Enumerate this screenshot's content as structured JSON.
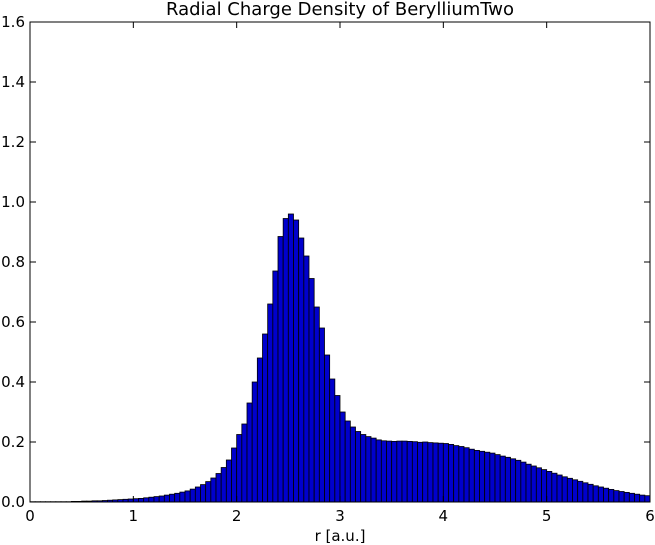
{
  "chart_data": {
    "type": "bar",
    "title": "Radial Charge Density of BerylliumTwo",
    "xlabel": "r [a.u.]",
    "ylabel": "",
    "xlim": [
      0,
      6
    ],
    "ylim": [
      0,
      1.6
    ],
    "xticks": [
      "0",
      "1",
      "2",
      "3",
      "4",
      "5",
      "6"
    ],
    "yticks": [
      "0.0",
      "0.2",
      "0.4",
      "0.6",
      "0.8",
      "1.0",
      "1.2",
      "1.4",
      "1.6"
    ],
    "grid": false,
    "bar_color": "#0000cc",
    "bin_width": 0.05,
    "x": [
      0.0,
      0.05,
      0.1,
      0.15,
      0.2,
      0.25,
      0.3,
      0.35,
      0.4,
      0.45,
      0.5,
      0.55,
      0.6,
      0.65,
      0.7,
      0.75,
      0.8,
      0.85,
      0.9,
      0.95,
      1.0,
      1.05,
      1.1,
      1.15,
      1.2,
      1.25,
      1.3,
      1.35,
      1.4,
      1.45,
      1.5,
      1.55,
      1.6,
      1.65,
      1.7,
      1.75,
      1.8,
      1.85,
      1.9,
      1.95,
      2.0,
      2.05,
      2.1,
      2.15,
      2.2,
      2.25,
      2.3,
      2.35,
      2.4,
      2.45,
      2.5,
      2.55,
      2.6,
      2.65,
      2.7,
      2.75,
      2.8,
      2.85,
      2.9,
      2.95,
      3.0,
      3.05,
      3.1,
      3.15,
      3.2,
      3.25,
      3.3,
      3.35,
      3.4,
      3.45,
      3.5,
      3.55,
      3.6,
      3.65,
      3.7,
      3.75,
      3.8,
      3.85,
      3.9,
      3.95,
      4.0,
      4.05,
      4.1,
      4.15,
      4.2,
      4.25,
      4.3,
      4.35,
      4.4,
      4.45,
      4.5,
      4.55,
      4.6,
      4.65,
      4.7,
      4.75,
      4.8,
      4.85,
      4.9,
      4.95,
      5.0,
      5.05,
      5.1,
      5.15,
      5.2,
      5.25,
      5.3,
      5.35,
      5.4,
      5.45,
      5.5,
      5.55,
      5.6,
      5.65,
      5.7,
      5.75,
      5.8,
      5.85,
      5.9,
      5.95
    ],
    "values": [
      0.001,
      0.001,
      0.001,
      0.001,
      0.001,
      0.001,
      0.001,
      0.001,
      0.002,
      0.002,
      0.003,
      0.003,
      0.004,
      0.004,
      0.005,
      0.006,
      0.007,
      0.008,
      0.009,
      0.01,
      0.011,
      0.012,
      0.014,
      0.016,
      0.018,
      0.02,
      0.023,
      0.026,
      0.029,
      0.033,
      0.037,
      0.043,
      0.05,
      0.058,
      0.068,
      0.08,
      0.095,
      0.115,
      0.14,
      0.18,
      0.225,
      0.26,
      0.33,
      0.4,
      0.48,
      0.56,
      0.66,
      0.77,
      0.885,
      0.945,
      0.96,
      0.94,
      0.88,
      0.82,
      0.745,
      0.65,
      0.58,
      0.49,
      0.41,
      0.355,
      0.3,
      0.27,
      0.25,
      0.235,
      0.225,
      0.218,
      0.213,
      0.207,
      0.204,
      0.203,
      0.202,
      0.203,
      0.203,
      0.202,
      0.201,
      0.199,
      0.2,
      0.198,
      0.197,
      0.196,
      0.195,
      0.192,
      0.188,
      0.185,
      0.181,
      0.176,
      0.172,
      0.169,
      0.166,
      0.163,
      0.158,
      0.153,
      0.149,
      0.144,
      0.139,
      0.133,
      0.126,
      0.12,
      0.114,
      0.108,
      0.102,
      0.096,
      0.09,
      0.084,
      0.079,
      0.074,
      0.069,
      0.064,
      0.059,
      0.054,
      0.05,
      0.046,
      0.042,
      0.038,
      0.035,
      0.032,
      0.029,
      0.026,
      0.023,
      0.021
    ]
  }
}
